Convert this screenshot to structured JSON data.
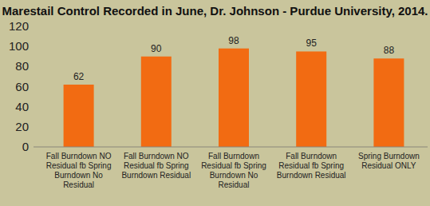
{
  "chart_data": {
    "type": "bar",
    "title": "Marestail Control Recorded in June, Dr. Johnson - Purdue University, 2014.",
    "categories": [
      "Fall Burndown NO Residual fb Spring Burndown No Residual",
      "Fall Burndown NO Residual fb Spring Burndown Residual",
      "Fall Burndown Residual fb Spring Burndown No Residual",
      "Fall Burndown Residual fb Spring Burndown Residual",
      "Spring Burndown Residual ONLY"
    ],
    "values": [
      62,
      90,
      98,
      95,
      88
    ],
    "color": "#f26b12",
    "ylim": [
      0,
      120
    ],
    "yticks": [
      0,
      20,
      40,
      60,
      80,
      100,
      120
    ],
    "grid": false,
    "data_labels": true
  }
}
